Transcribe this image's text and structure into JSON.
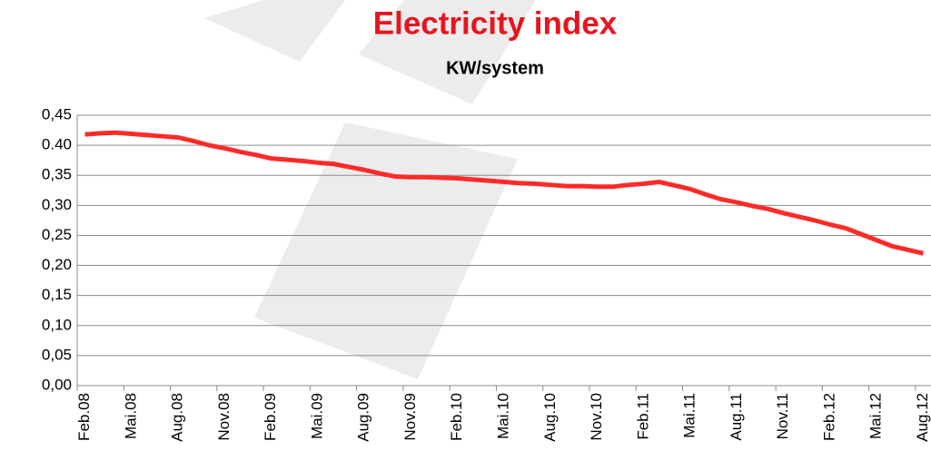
{
  "chart_data": {
    "type": "line",
    "title": "Electricity index",
    "subtitle": "KW/system",
    "categories": [
      "Feb.08",
      null,
      null,
      "Mai.08",
      null,
      null,
      "Aug.08",
      null,
      null,
      "Nov.08",
      null,
      null,
      "Feb.09",
      null,
      null,
      "Mai.09",
      null,
      null,
      "Aug.09",
      null,
      null,
      "Nov.09",
      null,
      null,
      "Feb.10",
      null,
      null,
      "Mai.10",
      null,
      null,
      "Aug.10",
      null,
      null,
      "Nov.10",
      null,
      null,
      "Feb.11",
      null,
      null,
      "Mai.11",
      null,
      null,
      "Aug.11",
      null,
      null,
      "Nov.11",
      null,
      null,
      "Feb.12",
      null,
      null,
      "Mai.12",
      null,
      null,
      "Aug.12"
    ],
    "values": [
      0.418,
      0.42,
      0.421,
      0.419,
      0.417,
      0.415,
      0.413,
      0.407,
      0.4,
      0.395,
      0.389,
      0.384,
      0.378,
      0.376,
      0.374,
      0.371,
      0.369,
      0.364,
      0.359,
      0.353,
      0.348,
      0.347,
      0.347,
      0.346,
      0.345,
      0.343,
      0.341,
      0.339,
      0.337,
      0.336,
      0.334,
      0.332,
      0.332,
      0.331,
      0.331,
      0.334,
      0.336,
      0.339,
      0.333,
      0.327,
      0.318,
      0.31,
      0.305,
      0.299,
      0.294,
      0.287,
      0.281,
      0.275,
      0.268,
      0.262,
      0.252,
      0.242,
      0.232,
      0.226,
      0.22
    ],
    "color": "#ff2a2a",
    "ylim": [
      0,
      0.45
    ],
    "yticks": [
      {
        "value": 0,
        "label": "0,00"
      },
      {
        "value": 0.05,
        "label": "0,05"
      },
      {
        "value": 0.1,
        "label": "0,10"
      },
      {
        "value": 0.15,
        "label": "0,15"
      },
      {
        "value": 0.2,
        "label": "0,20"
      },
      {
        "value": 0.25,
        "label": "0,25"
      },
      {
        "value": 0.3,
        "label": "0,30"
      },
      {
        "value": 0.35,
        "label": "0,35"
      },
      {
        "value": 0.4,
        "label": "0.40"
      },
      {
        "value": 0.45,
        "label": "0,45"
      }
    ],
    "grid": true,
    "title_color": "#e8141e"
  }
}
